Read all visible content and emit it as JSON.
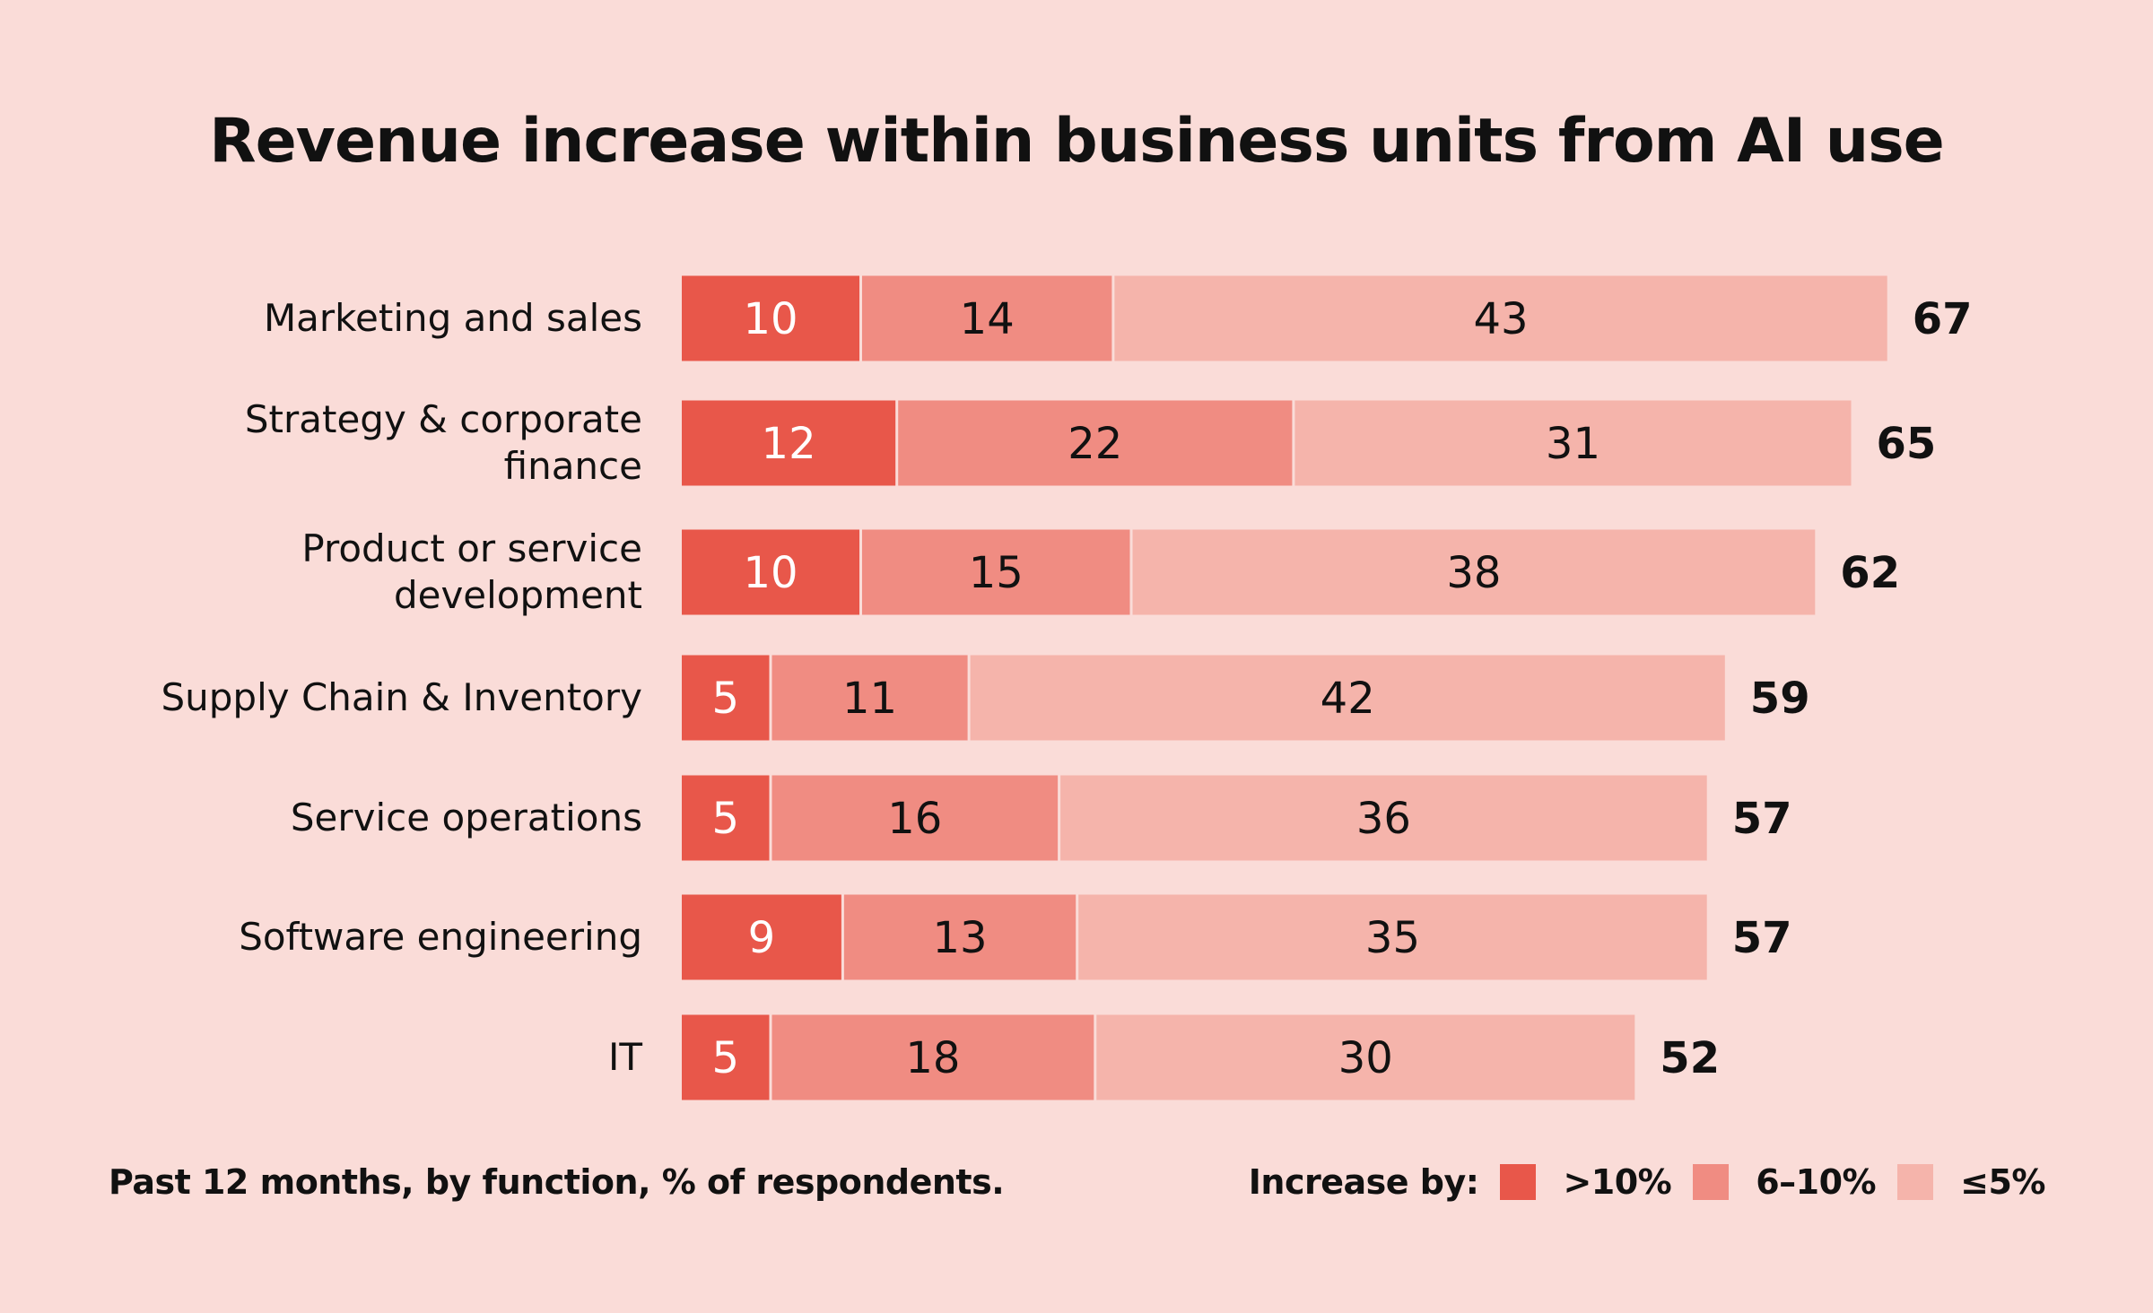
{
  "chart_data": {
    "type": "bar",
    "orientation": "horizontal",
    "stacked": true,
    "title": "Revenue increase within business units from AI use",
    "categories": [
      "Marketing and sales",
      "Strategy & corporate finance",
      "Product or service development",
      "Supply Chain & Inventory",
      "Service operations",
      "Software engineering",
      "IT"
    ],
    "category_lines": [
      [
        "Marketing and sales"
      ],
      [
        "Strategy & corporate",
        "finance"
      ],
      [
        "Product or service",
        "development"
      ],
      [
        "Supply Chain & Inventory"
      ],
      [
        "Service operations"
      ],
      [
        "Software engineering"
      ],
      [
        "IT"
      ]
    ],
    "series": [
      {
        "name": ">10%",
        "color": "#E8574A",
        "label_color": "#FFFFFF",
        "values": [
          10,
          12,
          10,
          5,
          5,
          9,
          5
        ]
      },
      {
        "name": "6–10%",
        "color": "#F08C82",
        "label_color": "#111111",
        "values": [
          14,
          22,
          15,
          11,
          16,
          13,
          18
        ]
      },
      {
        "name": "≤5%",
        "color": "#F5B4AB",
        "label_color": "#111111",
        "values": [
          43,
          31,
          38,
          42,
          36,
          35,
          30
        ]
      }
    ],
    "totals": [
      67,
      65,
      62,
      59,
      57,
      57,
      52
    ],
    "footnote": "Past 12 months, by function, % of respondents.",
    "legend_title": "Increase by:",
    "legend_position": "bottom-right",
    "grid": false,
    "background": "#FADCD8"
  }
}
